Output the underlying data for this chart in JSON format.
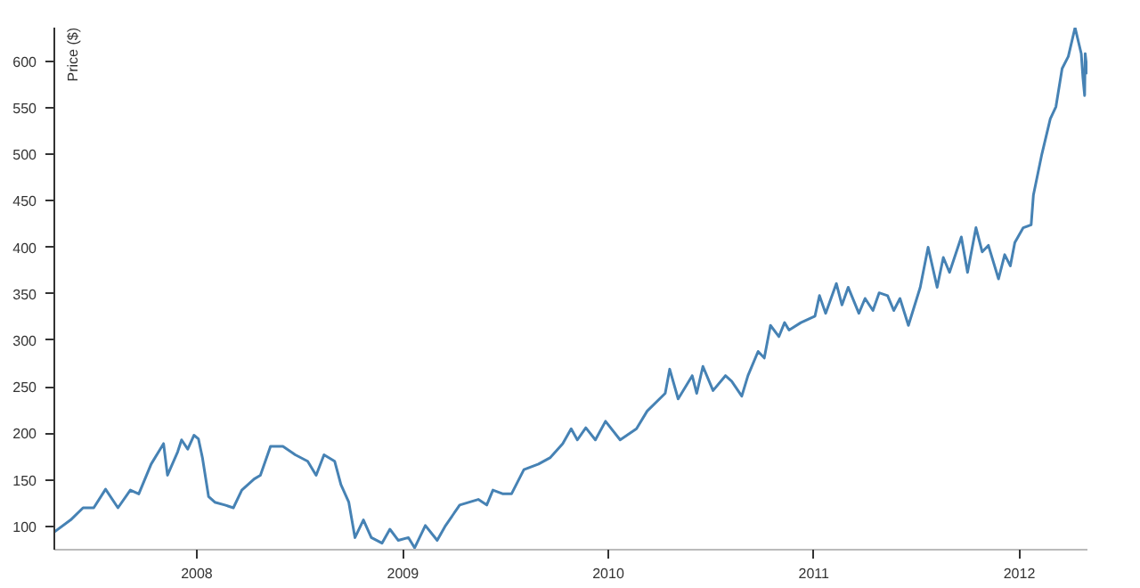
{
  "chart_data": {
    "type": "line",
    "ylabel": "Price ($)",
    "x": [
      "2007-04-23",
      "2007-05-22",
      "2007-06-13",
      "2007-07-02",
      "2007-07-23",
      "2007-08-14",
      "2007-09-05",
      "2007-09-20",
      "2007-10-12",
      "2007-11-03",
      "2007-11-10",
      "2007-11-28",
      "2007-12-05",
      "2007-12-16",
      "2007-12-27",
      "2008-01-04",
      "2008-01-11",
      "2008-01-22",
      "2008-02-02",
      "2008-02-20",
      "2008-03-06",
      "2008-03-21",
      "2008-04-12",
      "2008-04-23",
      "2008-05-11",
      "2008-06-02",
      "2008-06-24",
      "2008-07-16",
      "2008-07-31",
      "2008-08-14",
      "2008-09-02",
      "2008-09-13",
      "2008-09-27",
      "2008-10-08",
      "2008-10-23",
      "2008-11-06",
      "2008-11-25",
      "2008-12-09",
      "2008-12-24",
      "2009-01-11",
      "2009-01-22",
      "2009-02-10",
      "2009-03-03",
      "2009-03-18",
      "2009-04-12",
      "2009-05-15",
      "2009-05-30",
      "2009-06-10",
      "2009-06-28",
      "2009-07-13",
      "2009-08-04",
      "2009-08-30",
      "2009-09-20",
      "2009-10-12",
      "2009-10-27",
      "2009-11-07",
      "2009-11-22",
      "2009-12-09",
      "2009-12-27",
      "2010-01-22",
      "2010-02-20",
      "2010-03-11",
      "2010-04-12",
      "2010-04-20",
      "2010-05-05",
      "2010-05-30",
      "2010-06-07",
      "2010-06-18",
      "2010-07-06",
      "2010-07-28",
      "2010-08-08",
      "2010-08-26",
      "2010-09-06",
      "2010-09-24",
      "2010-10-05",
      "2010-10-16",
      "2010-10-31",
      "2010-11-10",
      "2010-11-18",
      "2010-12-09",
      "2011-01-03",
      "2011-01-11",
      "2011-01-22",
      "2011-02-10",
      "2011-02-20",
      "2011-03-03",
      "2011-03-22",
      "2011-04-02",
      "2011-04-16",
      "2011-04-27",
      "2011-05-12",
      "2011-05-23",
      "2011-06-03",
      "2011-06-18",
      "2011-07-09",
      "2011-07-23",
      "2011-08-08",
      "2011-08-19",
      "2011-08-30",
      "2011-09-20",
      "2011-10-01",
      "2011-10-16",
      "2011-10-27",
      "2011-11-07",
      "2011-11-25",
      "2011-12-06",
      "2011-12-16",
      "2011-12-24",
      "2012-01-08",
      "2012-01-22",
      "2012-01-26",
      "2012-02-10",
      "2012-02-25",
      "2012-03-06",
      "2012-03-17",
      "2012-03-28",
      "2012-04-09",
      "2012-04-20",
      "2012-04-23",
      "2012-04-26",
      "2012-04-27",
      "2012-05-01"
    ],
    "series": [
      {
        "color": "#4682b4",
        "values": [
          94,
          107,
          120,
          120,
          140,
          120,
          139,
          135,
          167,
          189,
          155,
          180,
          193,
          183,
          198,
          194,
          174,
          132,
          126,
          123,
          120,
          139,
          151,
          155,
          186,
          186,
          177,
          170,
          155,
          177,
          170,
          145,
          126,
          88,
          107,
          88,
          82,
          97,
          85,
          88,
          77,
          101,
          85,
          101,
          123,
          129,
          123,
          139,
          135,
          135,
          161,
          167,
          174,
          189,
          205,
          193,
          206,
          193,
          213,
          193,
          205,
          224,
          243,
          269,
          237,
          262,
          243,
          272,
          246,
          262,
          256,
          240,
          262,
          288,
          281,
          316,
          304,
          319,
          311,
          319,
          326,
          348,
          329,
          361,
          338,
          357,
          329,
          345,
          332,
          351,
          348,
          332,
          345,
          316,
          357,
          400,
          357,
          389,
          373,
          411,
          373,
          421,
          395,
          402,
          366,
          392,
          380,
          405,
          421,
          424,
          456,
          500,
          538,
          551,
          592,
          605,
          636,
          608,
          582,
          563,
          608,
          586
        ]
      }
    ],
    "xlim": [
      "2007-04-23",
      "2012-05-01"
    ],
    "xticks": [
      "2008",
      "2009",
      "2010",
      "2011",
      "2012"
    ],
    "ylim": [
      75,
      636
    ],
    "yticks": [
      100,
      150,
      200,
      250,
      300,
      350,
      400,
      450,
      500,
      550,
      600
    ],
    "grid": false,
    "marker": "none",
    "line_style": "solid"
  }
}
